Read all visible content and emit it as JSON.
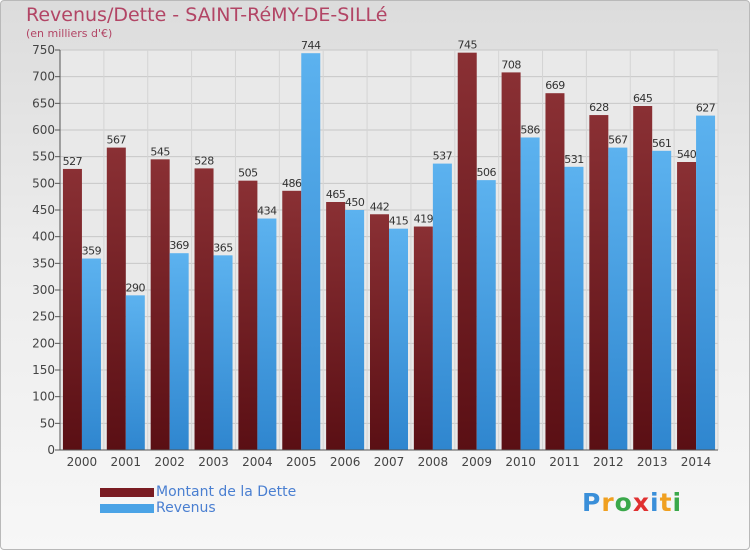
{
  "chart_data": {
    "type": "bar",
    "title": "Revenus/Dette - SAINT-RéMY-DE-SILLé",
    "subtitle": "(en milliers d'€)",
    "categories": [
      "2000",
      "2001",
      "2002",
      "2003",
      "2004",
      "2005",
      "2006",
      "2007",
      "2008",
      "2009",
      "2010",
      "2011",
      "2012",
      "2013",
      "2014"
    ],
    "series": [
      {
        "name": "Montant de la Dette",
        "color": "#7a1c22",
        "values": [
          527,
          567,
          545,
          528,
          505,
          486,
          465,
          442,
          419,
          745,
          708,
          669,
          628,
          645,
          540
        ]
      },
      {
        "name": "Revenus",
        "color": "#4aa3e6",
        "values": [
          359,
          290,
          369,
          365,
          434,
          744,
          450,
          415,
          537,
          506,
          586,
          531,
          567,
          561,
          627
        ]
      }
    ],
    "ylim": [
      0,
      750
    ],
    "yticks": [
      0,
      50,
      100,
      150,
      200,
      250,
      300,
      350,
      400,
      450,
      500,
      550,
      600,
      650,
      700,
      750
    ],
    "grid": true,
    "legend": "bottom-left"
  },
  "logo": {
    "letters": [
      "P",
      "r",
      "o",
      "x",
      "i",
      "t",
      "i"
    ],
    "colors": [
      "#3a8fd9",
      "#f0a020",
      "#3aa84a",
      "#e03030",
      "#3a8fd9",
      "#f0a020",
      "#3aa84a"
    ]
  }
}
